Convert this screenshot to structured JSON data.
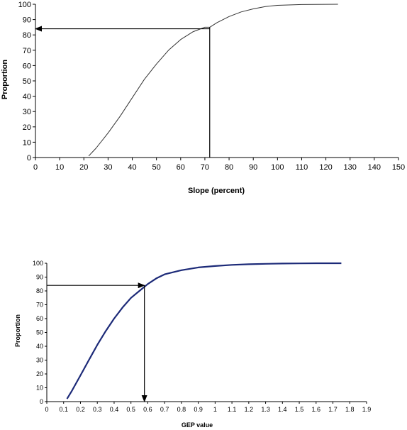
{
  "chart_data": [
    {
      "type": "line",
      "title": "",
      "xlabel": "Slope (percent)",
      "ylabel": "Proportion",
      "xlim": [
        0,
        150
      ],
      "ylim": [
        0,
        100
      ],
      "xticks": [
        0,
        10,
        20,
        30,
        40,
        50,
        60,
        70,
        80,
        90,
        100,
        110,
        120,
        130,
        140,
        150
      ],
      "yticks": [
        0,
        10,
        20,
        30,
        40,
        50,
        60,
        70,
        80,
        90,
        100
      ],
      "grid": false,
      "legend": "none",
      "line_color": "#333333",
      "series": [
        {
          "x": [
            22,
            25,
            30,
            35,
            40,
            45,
            50,
            55,
            60,
            65,
            70,
            72,
            75,
            80,
            85,
            90,
            95,
            100,
            110,
            125
          ],
          "y": [
            1,
            6,
            16,
            27,
            39,
            51,
            61,
            70,
            77,
            82,
            85,
            85,
            88,
            92,
            95,
            97,
            98.5,
            99.3,
            99.8,
            100
          ]
        }
      ],
      "annotations": [
        {
          "type": "vertical-arrow",
          "x": 72,
          "y_from": 85,
          "y_to": 0
        },
        {
          "type": "horizontal-arrow",
          "y": 84,
          "x_from": 72,
          "x_to": 0
        }
      ]
    },
    {
      "type": "line",
      "title": "",
      "xlabel": "GEP value",
      "ylabel": "Proportion",
      "xlim": [
        0,
        1.9
      ],
      "ylim": [
        0,
        100
      ],
      "xticks": [
        "0",
        "0.1",
        "0.2",
        "0.3",
        "0.4",
        "0.5",
        "0.6",
        "0.7",
        "0.8",
        "0.9",
        "1",
        "1.1",
        "1.2",
        "1.3",
        "1.4",
        "1.5",
        "1.6",
        "1.7",
        "1.8",
        "1.9"
      ],
      "yticks": [
        0,
        10,
        20,
        30,
        40,
        50,
        60,
        70,
        80,
        90,
        100
      ],
      "grid": false,
      "legend": "none",
      "line_color": "#1c2a78",
      "series": [
        {
          "x": [
            0.12,
            0.15,
            0.2,
            0.25,
            0.3,
            0.35,
            0.4,
            0.45,
            0.5,
            0.55,
            0.6,
            0.65,
            0.7,
            0.8,
            0.9,
            1.0,
            1.1,
            1.2,
            1.3,
            1.4,
            1.5,
            1.6,
            1.75
          ],
          "y": [
            2,
            8,
            19,
            30,
            41,
            51,
            60,
            68,
            75,
            80,
            85,
            89,
            92,
            95,
            97,
            98,
            98.8,
            99.3,
            99.6,
            99.8,
            99.9,
            100,
            100
          ]
        }
      ],
      "annotations": [
        {
          "type": "horizontal-arrow",
          "y": 84,
          "x_from": 0,
          "x_to": 0.58
        },
        {
          "type": "vertical-arrow",
          "x": 0.58,
          "y_from": 84,
          "y_to": 0
        }
      ]
    }
  ]
}
